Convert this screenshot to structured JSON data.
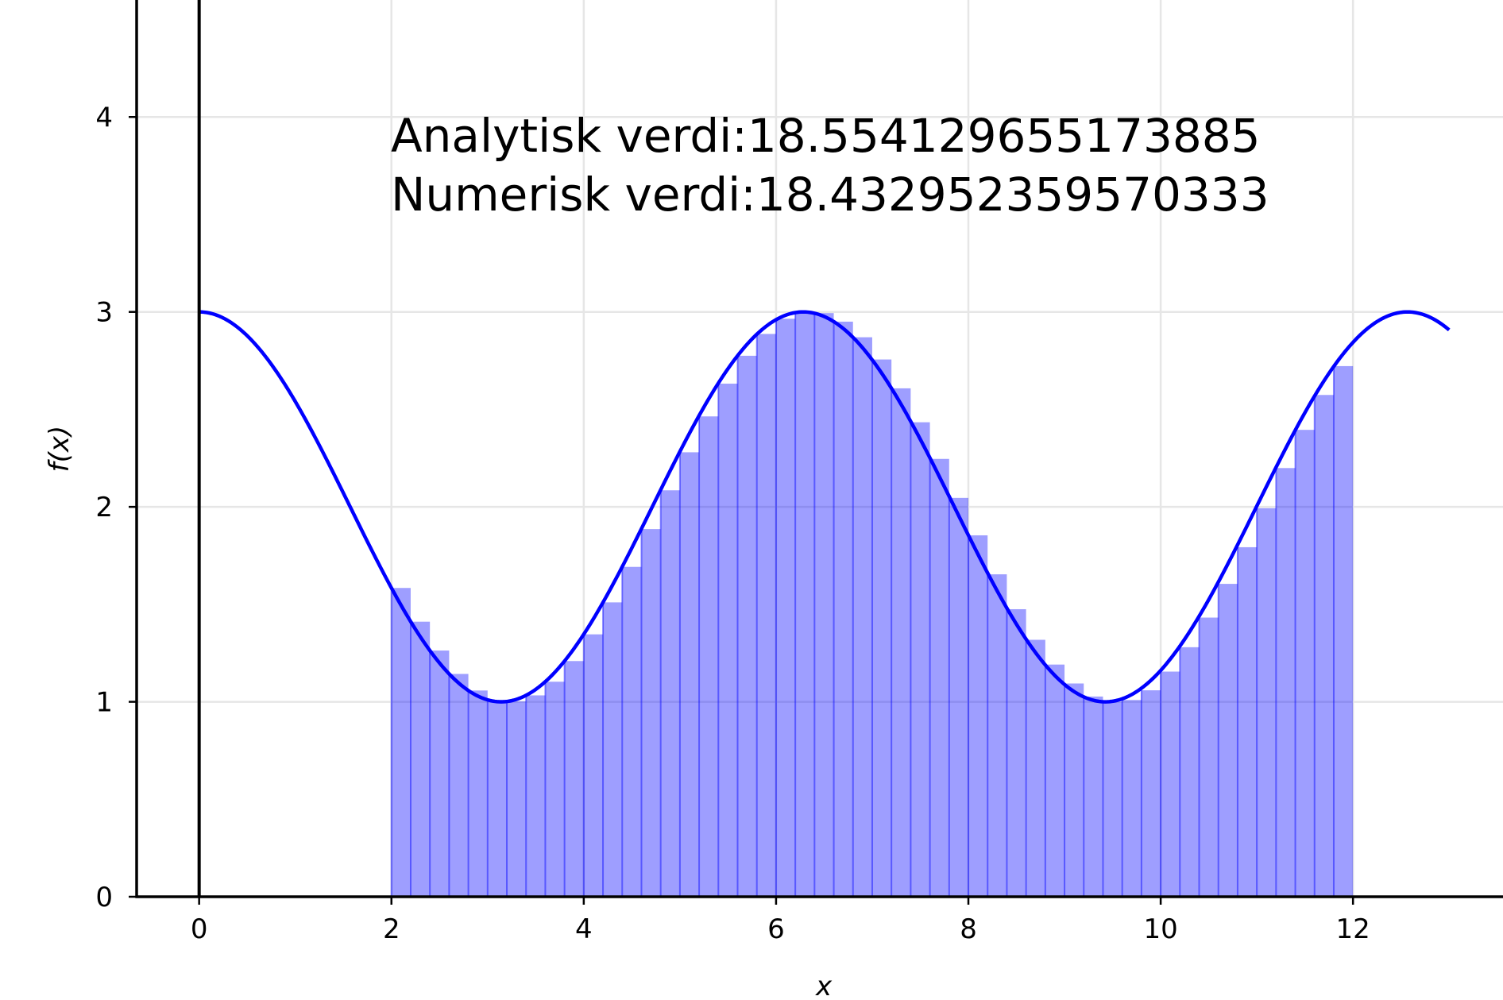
{
  "chart_data": {
    "type": "bar",
    "xlabel": "x",
    "ylabel": "f(x)",
    "xlim": [
      -0.65,
      13.56
    ],
    "ylim": [
      0,
      4.6
    ],
    "xticks": [
      0,
      2,
      4,
      6,
      8,
      10,
      12
    ],
    "yticks": [
      0,
      1,
      2,
      3,
      4
    ],
    "grid": true,
    "annotations": [
      "Analytisk verdi:18.554129655173885",
      "Numerisk verdi:18.432952359570333"
    ],
    "curve": {
      "expression": "f(x) = 2 + cos(x)",
      "x_range": [
        0,
        13
      ],
      "color": "#0000ff"
    },
    "bars": {
      "color": "#0000ff",
      "opacity": 0.38,
      "x_left": [
        2.0,
        2.2,
        2.4,
        2.6,
        2.8,
        3.0,
        3.2,
        3.4,
        3.6,
        3.8,
        4.0,
        4.2,
        4.4,
        4.6,
        4.8,
        5.0,
        5.2,
        5.4,
        5.6,
        5.8,
        6.0,
        6.2,
        6.4,
        6.6,
        6.8,
        7.0,
        7.2,
        7.4,
        7.6,
        7.8,
        8.0,
        8.2,
        8.4,
        8.6,
        8.8,
        9.0,
        9.2,
        9.4,
        9.6,
        9.8,
        10.0,
        10.2,
        10.4,
        10.6,
        10.8,
        11.0,
        11.2,
        11.4,
        11.6,
        11.8
      ],
      "width": 0.2,
      "values": [
        1.584,
        1.411,
        1.263,
        1.143,
        1.058,
        1.01,
        1.002,
        1.033,
        1.103,
        1.209,
        1.346,
        1.51,
        1.692,
        1.886,
        2.085,
        2.28,
        2.464,
        2.632,
        2.775,
        2.887,
        2.965,
        3.0,
        2.994,
        2.95,
        2.87,
        2.756,
        2.608,
        2.434,
        2.246,
        2.046,
        1.854,
        1.654,
        1.475,
        1.318,
        1.191,
        1.094,
        1.027,
        1.0,
        1.009,
        1.059,
        1.155,
        1.28,
        1.432,
        1.605,
        1.793,
        1.993,
        2.199,
        2.395,
        2.574,
        2.722
      ]
    }
  }
}
